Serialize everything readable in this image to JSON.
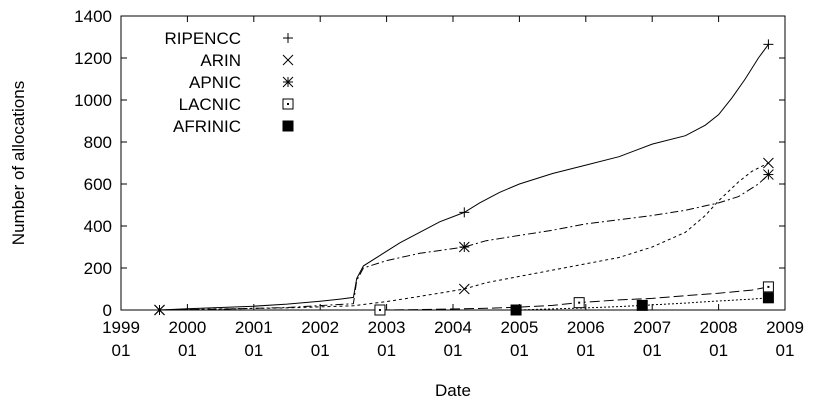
{
  "chart_data": {
    "type": "line",
    "title": "",
    "xlabel": "Date",
    "ylabel": "Number of allocations",
    "xlim": [
      "1999-01",
      "2009-01"
    ],
    "ylim": [
      0,
      1400
    ],
    "grid": false,
    "legend_position": "top-left",
    "x_ticks": [
      {
        "value": 1999,
        "line1": "1999",
        "line2": "01"
      },
      {
        "value": 2000,
        "line1": "2000",
        "line2": "01"
      },
      {
        "value": 2001,
        "line1": "2001",
        "line2": "01"
      },
      {
        "value": 2002,
        "line1": "2002",
        "line2": "01"
      },
      {
        "value": 2003,
        "line1": "2003",
        "line2": "01"
      },
      {
        "value": 2004,
        "line1": "2004",
        "line2": "01"
      },
      {
        "value": 2005,
        "line1": "2005",
        "line2": "01"
      },
      {
        "value": 2006,
        "line1": "2006",
        "line2": "01"
      },
      {
        "value": 2007,
        "line1": "2007",
        "line2": "01"
      },
      {
        "value": 2008,
        "line1": "2008",
        "line2": "01"
      },
      {
        "value": 2009,
        "line1": "2009",
        "line2": "01"
      }
    ],
    "y_ticks": [
      "0",
      "200",
      "400",
      "600",
      "800",
      "1000",
      "1200",
      "1400"
    ],
    "series": [
      {
        "name": "RIPENCC",
        "marker": "plus",
        "dash": "",
        "points": [
          [
            1999.58,
            0
          ],
          [
            2000.0,
            6
          ],
          [
            2000.5,
            12
          ],
          [
            2001.0,
            18
          ],
          [
            2001.5,
            28
          ],
          [
            2002.0,
            42
          ],
          [
            2002.3,
            52
          ],
          [
            2002.5,
            60
          ],
          [
            2002.55,
            150
          ],
          [
            2002.65,
            210
          ],
          [
            2002.9,
            260
          ],
          [
            2003.2,
            320
          ],
          [
            2003.5,
            370
          ],
          [
            2003.8,
            420
          ],
          [
            2004.17,
            465
          ],
          [
            2004.4,
            510
          ],
          [
            2004.7,
            560
          ],
          [
            2005.0,
            600
          ],
          [
            2005.5,
            650
          ],
          [
            2006.0,
            690
          ],
          [
            2006.5,
            730
          ],
          [
            2007.0,
            790
          ],
          [
            2007.5,
            830
          ],
          [
            2007.8,
            880
          ],
          [
            2008.0,
            930
          ],
          [
            2008.2,
            1010
          ],
          [
            2008.4,
            1100
          ],
          [
            2008.6,
            1200
          ],
          [
            2008.75,
            1265
          ]
        ],
        "markers": [
          [
            1999.58,
            0
          ],
          [
            2004.17,
            465
          ],
          [
            2008.75,
            1265
          ]
        ]
      },
      {
        "name": "ARIN",
        "marker": "cross",
        "dash": "3,3",
        "points": [
          [
            1999.58,
            0
          ],
          [
            2000.5,
            5
          ],
          [
            2001.5,
            10
          ],
          [
            2002.5,
            20
          ],
          [
            2003.0,
            40
          ],
          [
            2003.5,
            65
          ],
          [
            2004.17,
            100
          ],
          [
            2004.5,
            130
          ],
          [
            2005.0,
            160
          ],
          [
            2005.5,
            190
          ],
          [
            2006.0,
            220
          ],
          [
            2006.5,
            250
          ],
          [
            2007.0,
            300
          ],
          [
            2007.5,
            370
          ],
          [
            2007.8,
            450
          ],
          [
            2008.0,
            520
          ],
          [
            2008.3,
            610
          ],
          [
            2008.5,
            660
          ],
          [
            2008.75,
            700
          ]
        ],
        "markers": [
          [
            1999.58,
            0
          ],
          [
            2004.17,
            100
          ],
          [
            2008.75,
            700
          ]
        ]
      },
      {
        "name": "APNIC",
        "marker": "star",
        "dash": "8,3,2,3",
        "points": [
          [
            1999.58,
            0
          ],
          [
            2000.5,
            4
          ],
          [
            2001.5,
            12
          ],
          [
            2002.5,
            30
          ],
          [
            2002.55,
            140
          ],
          [
            2002.65,
            200
          ],
          [
            2003.0,
            235
          ],
          [
            2003.5,
            270
          ],
          [
            2004.17,
            300
          ],
          [
            2004.5,
            330
          ],
          [
            2005.0,
            355
          ],
          [
            2005.5,
            380
          ],
          [
            2006.0,
            410
          ],
          [
            2006.5,
            430
          ],
          [
            2007.0,
            450
          ],
          [
            2007.5,
            475
          ],
          [
            2008.0,
            510
          ],
          [
            2008.3,
            540
          ],
          [
            2008.6,
            600
          ],
          [
            2008.75,
            645
          ]
        ],
        "markers": [
          [
            1999.58,
            0
          ],
          [
            2004.17,
            300
          ],
          [
            2008.75,
            645
          ]
        ]
      },
      {
        "name": "LACNIC",
        "marker": "dotted-square",
        "dash": "10,4",
        "points": [
          [
            2002.9,
            0
          ],
          [
            2003.5,
            2
          ],
          [
            2004.5,
            8
          ],
          [
            2005.0,
            14
          ],
          [
            2005.5,
            22
          ],
          [
            2005.9,
            35
          ],
          [
            2006.5,
            48
          ],
          [
            2007.0,
            55
          ],
          [
            2007.5,
            68
          ],
          [
            2008.0,
            80
          ],
          [
            2008.5,
            95
          ],
          [
            2008.75,
            110
          ]
        ],
        "markers": [
          [
            2002.9,
            0
          ],
          [
            2005.9,
            35
          ],
          [
            2008.75,
            110
          ]
        ]
      },
      {
        "name": "AFRINIC",
        "marker": "filled-square",
        "dash": "2,2",
        "points": [
          [
            2004.95,
            0
          ],
          [
            2005.5,
            5
          ],
          [
            2006.0,
            10
          ],
          [
            2006.5,
            16
          ],
          [
            2006.85,
            22
          ],
          [
            2007.5,
            33
          ],
          [
            2008.0,
            43
          ],
          [
            2008.5,
            52
          ],
          [
            2008.75,
            58
          ]
        ],
        "markers": [
          [
            2004.95,
            0
          ],
          [
            2006.85,
            22
          ],
          [
            2008.75,
            58
          ]
        ]
      }
    ]
  }
}
